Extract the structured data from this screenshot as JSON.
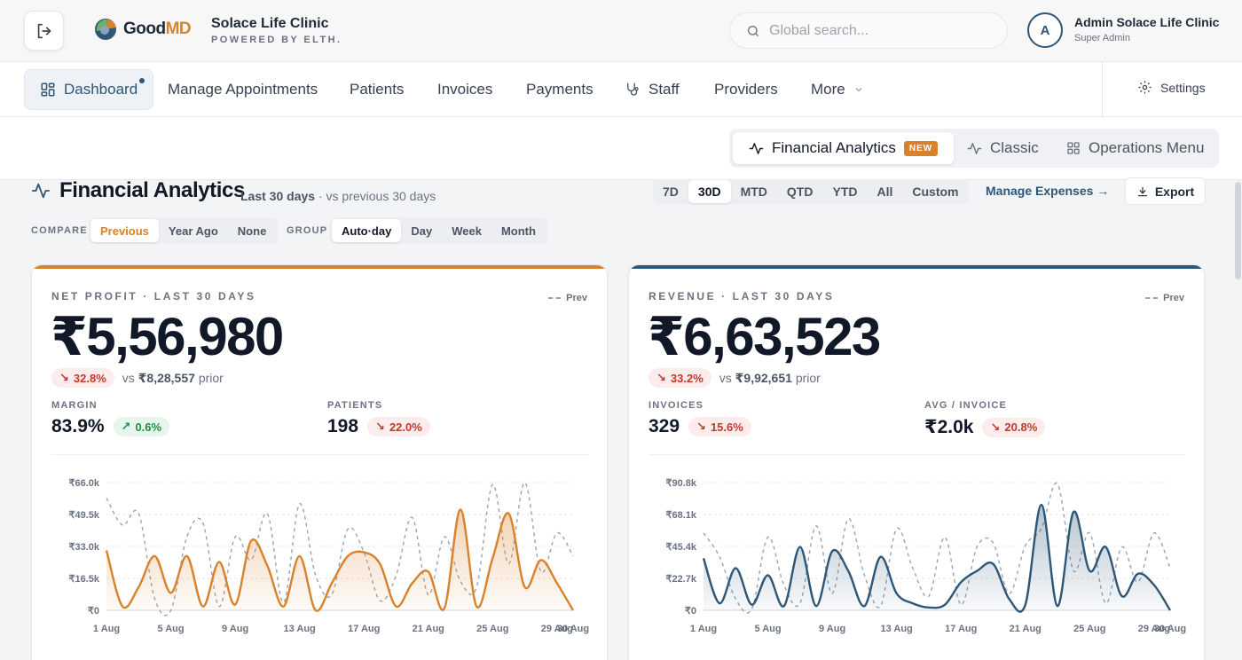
{
  "header": {
    "brand": {
      "word_a": "Good",
      "word_b": "MD"
    },
    "clinic_name": "Solace Life Clinic",
    "clinic_sub": "POWERED BY ELTH.",
    "search_placeholder": "Global search...",
    "avatar_initial": "A",
    "user_name": "Admin Solace Life Clinic",
    "user_role": "Super Admin"
  },
  "nav": {
    "items": [
      {
        "label": "Dashboard"
      },
      {
        "label": "Manage Appointments"
      },
      {
        "label": "Patients"
      },
      {
        "label": "Invoices"
      },
      {
        "label": "Payments"
      },
      {
        "label": "Staff"
      },
      {
        "label": "Providers"
      },
      {
        "label": "More"
      }
    ],
    "settings_label": "Settings"
  },
  "views": {
    "financial": "Financial Analytics",
    "new_badge": "NEW",
    "classic": "Classic",
    "operations": "Operations Menu"
  },
  "page": {
    "title": "Financial Analytics",
    "range_main": "Last 30 days",
    "range_sep": " · ",
    "range_compare": "vs previous 30 days",
    "periods": [
      "7D",
      "30D",
      "MTD",
      "QTD",
      "YTD",
      "All",
      "Custom"
    ],
    "active_period": "30D",
    "manage_expenses": "Manage Expenses →",
    "export": "Export",
    "compare_label": "COMPARE",
    "compare_options": [
      "Previous",
      "Year Ago",
      "None"
    ],
    "group_label": "GROUP",
    "group_options": [
      "Auto·day",
      "Day",
      "Week",
      "Month"
    ]
  },
  "colors": {
    "accent_orange": "#d9822b",
    "accent_navy": "#2d5677",
    "down_red": "#c0392b",
    "up_green": "#1f8a45"
  },
  "cards": {
    "profit": {
      "label": "NET PROFIT · LAST 30 DAYS",
      "prev_label": "Prev",
      "value": "₹5,56,980",
      "delta": "32.8%",
      "vs": "vs",
      "prior_value": "₹8,28,557",
      "prior_word": "prior",
      "m1_label": "MARGIN",
      "m1_value": "83.9%",
      "m1_delta": "0.6%",
      "m2_label": "PATIENTS",
      "m2_value": "198",
      "m2_delta": "22.0%"
    },
    "revenue": {
      "label": "REVENUE · LAST 30 DAYS",
      "prev_label": "Prev",
      "value": "₹6,63,523",
      "delta": "33.2%",
      "vs": "vs",
      "prior_value": "₹9,92,651",
      "prior_word": "prior",
      "m1_label": "INVOICES",
      "m1_value": "329",
      "m1_delta": "15.6%",
      "m2_label": "AVG / INVOICE",
      "m2_value": "₹2.0k",
      "m2_delta": "20.8%"
    }
  },
  "chart_data": [
    {
      "type": "line",
      "x": [
        "1 Aug",
        "2 Aug",
        "3 Aug",
        "4 Aug",
        "5 Aug",
        "6 Aug",
        "7 Aug",
        "8 Aug",
        "9 Aug",
        "10 Aug",
        "11 Aug",
        "12 Aug",
        "13 Aug",
        "14 Aug",
        "15 Aug",
        "16 Aug",
        "17 Aug",
        "18 Aug",
        "19 Aug",
        "20 Aug",
        "21 Aug",
        "22 Aug",
        "23 Aug",
        "24 Aug",
        "25 Aug",
        "26 Aug",
        "27 Aug",
        "28 Aug",
        "29 Aug",
        "30 Aug"
      ],
      "x_ticks": [
        "1 Aug",
        "5 Aug",
        "9 Aug",
        "13 Aug",
        "17 Aug",
        "21 Aug",
        "25 Aug",
        "29 Aug",
        "30 Aug"
      ],
      "y_ticks": [
        "₹0",
        "₹16.5k",
        "₹33.0k",
        "₹49.5k",
        "₹66.0k"
      ],
      "ylim": [
        0,
        66000
      ],
      "series": [
        {
          "name": "",
          "color": "#d9822b",
          "values": [
            31000,
            2000,
            12000,
            28000,
            9000,
            28000,
            2000,
            25000,
            3000,
            36000,
            23000,
            2000,
            28000,
            0,
            14000,
            28000,
            30000,
            24000,
            2000,
            14000,
            20000,
            1000,
            52000,
            2000,
            27000,
            50000,
            12000,
            26000,
            14000,
            0
          ]
        },
        {
          "name": "Prev",
          "color": "#9ca3af",
          "values": [
            58000,
            44000,
            50000,
            6000,
            0,
            38000,
            45000,
            2000,
            38000,
            26000,
            50000,
            4000,
            55000,
            18000,
            8000,
            42000,
            30000,
            5000,
            18000,
            48000,
            8000,
            38000,
            15000,
            12000,
            65000,
            24000,
            66000,
            20000,
            40000,
            28000
          ]
        }
      ]
    },
    {
      "type": "line",
      "x": [
        "1 Aug",
        "2 Aug",
        "3 Aug",
        "4 Aug",
        "5 Aug",
        "6 Aug",
        "7 Aug",
        "8 Aug",
        "9 Aug",
        "10 Aug",
        "11 Aug",
        "12 Aug",
        "13 Aug",
        "14 Aug",
        "15 Aug",
        "16 Aug",
        "17 Aug",
        "18 Aug",
        "19 Aug",
        "20 Aug",
        "21 Aug",
        "22 Aug",
        "23 Aug",
        "24 Aug",
        "25 Aug",
        "26 Aug",
        "27 Aug",
        "28 Aug",
        "29 Aug",
        "30 Aug"
      ],
      "x_ticks": [
        "1 Aug",
        "5 Aug",
        "9 Aug",
        "13 Aug",
        "17 Aug",
        "21 Aug",
        "25 Aug",
        "29 Aug",
        "30 Aug"
      ],
      "y_ticks": [
        "₹0",
        "₹22.7k",
        "₹45.4k",
        "₹68.1k",
        "₹90.8k"
      ],
      "ylim": [
        0,
        90800
      ],
      "series": [
        {
          "name": "",
          "color": "#2d5677",
          "values": [
            37000,
            5000,
            30000,
            4000,
            25000,
            3000,
            45000,
            3000,
            42000,
            28000,
            3000,
            38000,
            12000,
            5000,
            2000,
            4000,
            20000,
            28000,
            33000,
            8000,
            4000,
            75000,
            3000,
            70000,
            28000,
            45000,
            10000,
            26000,
            18000,
            0
          ]
        },
        {
          "name": "Prev",
          "color": "#9ca3af",
          "values": [
            55000,
            38000,
            8000,
            1000,
            52000,
            18000,
            5000,
            60000,
            12000,
            65000,
            25000,
            3000,
            58000,
            30000,
            10000,
            52000,
            4000,
            45000,
            48000,
            12000,
            46000,
            58000,
            90000,
            28000,
            55000,
            5000,
            45000,
            20000,
            55000,
            30000
          ]
        }
      ]
    }
  ]
}
